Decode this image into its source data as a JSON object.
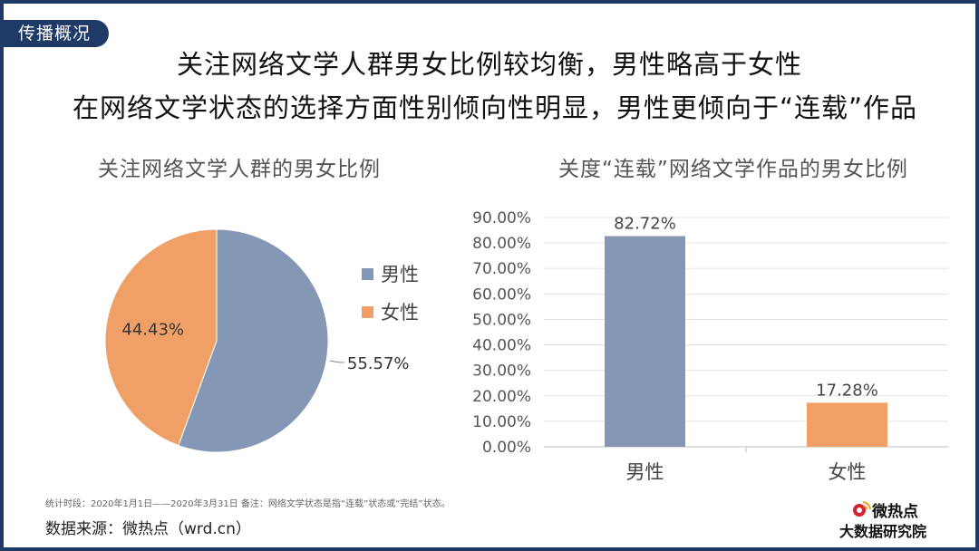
{
  "section_tag": "传播概况",
  "headline": [
    "关注网络文学人群男女比例较均衡，男性略高于女性",
    "在网络文学状态的选择方面性别倾向性明显，男性更倾向于“连载”作品"
  ],
  "chart_data": [
    {
      "type": "pie",
      "title": "关注网络文学人群的男女比例",
      "legend_position": "right",
      "slices": [
        {
          "name": "男性",
          "value": 55.57,
          "label": "55.57%",
          "color": "#8497b5"
        },
        {
          "name": "女性",
          "value": 44.43,
          "label": "44.43%",
          "color": "#f0a066"
        }
      ]
    },
    {
      "type": "bar",
      "title": "关度“连载”网络文学作品的男女比例",
      "categories": [
        "男性",
        "女性"
      ],
      "values": [
        82.72,
        17.28
      ],
      "value_labels": [
        "82.72%",
        "17.28%"
      ],
      "colors": [
        "#8497b5",
        "#f0a066"
      ],
      "ylim": [
        0,
        90
      ],
      "yticks": [
        "0.00%",
        "10.00%",
        "20.00%",
        "30.00%",
        "40.00%",
        "50.00%",
        "60.00%",
        "70.00%",
        "80.00%",
        "90.00%"
      ],
      "grid": true
    }
  ],
  "footnote": "统计时段：2020年1月1日——2020年3月31日    备注：网络文学状态是指“连载”状态或“完结”状态。",
  "source": "数据来源：微热点（wrd.cn）",
  "logo": {
    "name": "微热点",
    "sub": "大数据研究院"
  }
}
